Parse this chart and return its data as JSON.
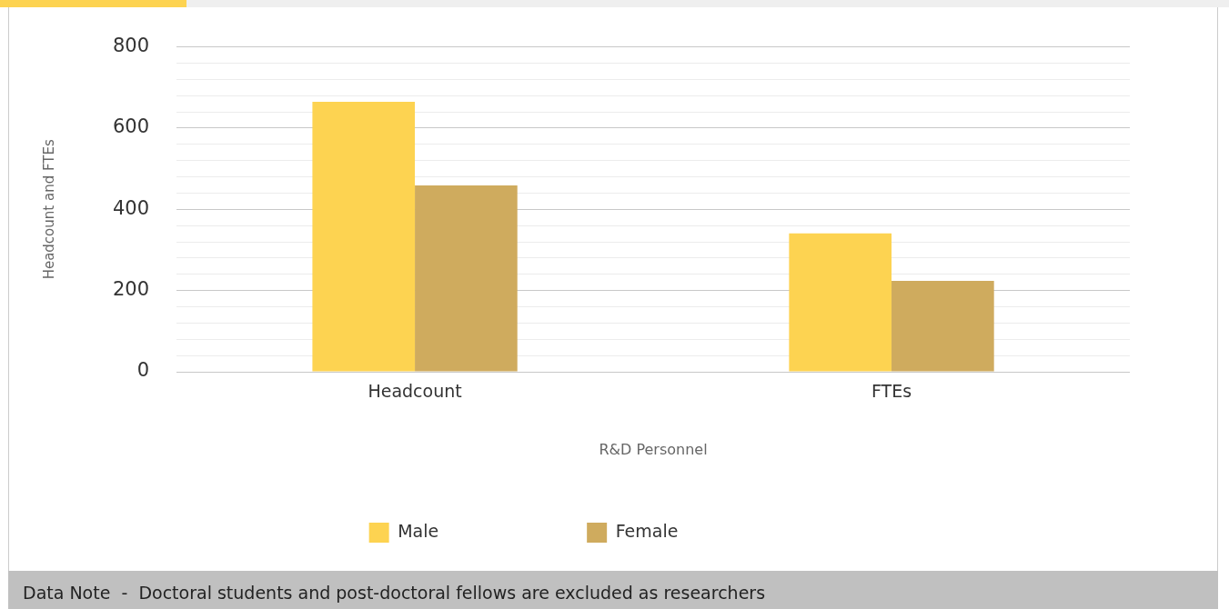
{
  "chart_data": {
    "type": "bar",
    "xlabel": "R&D Personnel",
    "ylabel": "Headcount and FTEs",
    "categories": [
      "Headcount",
      "FTEs"
    ],
    "series": [
      {
        "name": "Male",
        "color": "#fdd351",
        "values": [
          665,
          341
        ]
      },
      {
        "name": "Female",
        "color": "#cfab5e",
        "values": [
          459,
          224
        ]
      }
    ],
    "ylim": [
      0,
      800
    ],
    "yticks": [
      0,
      {
        "value": 40,
        "label": null
      },
      {
        "value": 80,
        "label": null
      },
      {
        "value": 120,
        "label": null
      },
      {
        "value": 160,
        "label": null
      },
      200,
      {
        "value": 240,
        "label": null
      },
      {
        "value": 280,
        "label": null
      },
      {
        "value": 320,
        "label": null
      },
      {
        "value": 360,
        "label": null
      },
      400,
      {
        "value": 440,
        "label": null
      },
      {
        "value": 480,
        "label": null
      },
      {
        "value": 520,
        "label": null
      },
      {
        "value": 560,
        "label": null
      },
      600,
      {
        "value": 640,
        "label": null
      },
      {
        "value": 680,
        "label": null
      },
      {
        "value": 720,
        "label": null
      },
      {
        "value": 760,
        "label": null
      },
      800
    ],
    "grid": "y",
    "legend": "bottom",
    "annotations": [
      "Data Note  -  Doctoral students and post-doctoral fellows are excluded as researchers"
    ]
  }
}
